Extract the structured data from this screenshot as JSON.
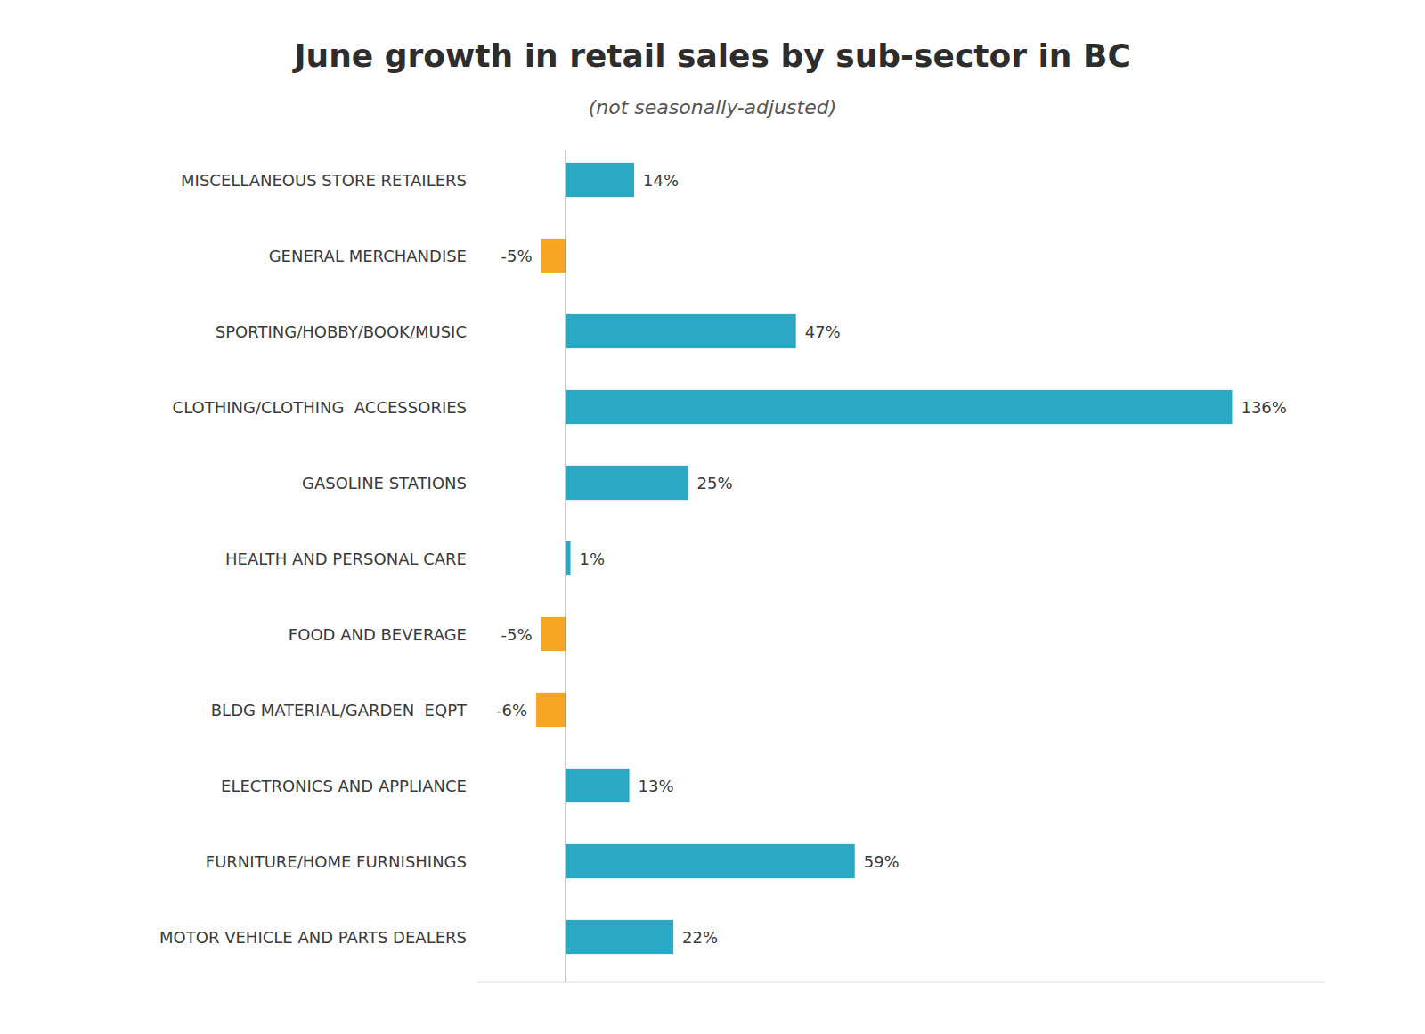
{
  "chart_data": {
    "type": "bar",
    "orientation": "horizontal",
    "title": "June growth in retail sales by sub-sector in BC",
    "subtitle": "(not seasonally-adjusted)",
    "categories": [
      "MOTOR VEHICLE AND PARTS DEALERS",
      "FURNITURE/HOME FURNISHINGS",
      "ELECTRONICS AND APPLIANCE",
      "BLDG MATERIAL/GARDEN  EQPT",
      "FOOD AND BEVERAGE",
      "HEALTH AND PERSONAL CARE",
      "GASOLINE STATIONS",
      "CLOTHING/CLOTHING  ACCESSORIES",
      "SPORTING/HOBBY/BOOK/MUSIC",
      "GENERAL MERCHANDISE",
      "MISCELLANEOUS STORE RETAILERS"
    ],
    "values": [
      22,
      59,
      13,
      -6,
      -5,
      1,
      25,
      136,
      47,
      -5,
      14
    ],
    "value_labels": [
      "22%",
      "59%",
      "13%",
      "-6%",
      "-5%",
      "1%",
      "25%",
      "136%",
      "47%",
      "-5%",
      "14%"
    ],
    "colors": [
      "#2aa8c4",
      "#2aa8c4",
      "#2aa8c4",
      "#f5a623",
      "#f5a623",
      "#2aa8c4",
      "#2aa8c4",
      "#2aa8c4",
      "#2aa8c4",
      "#f5a623",
      "#2aa8c4"
    ],
    "xlim": [
      -18,
      155
    ],
    "data_labels": true,
    "tick_labels": "y",
    "grid": false
  }
}
